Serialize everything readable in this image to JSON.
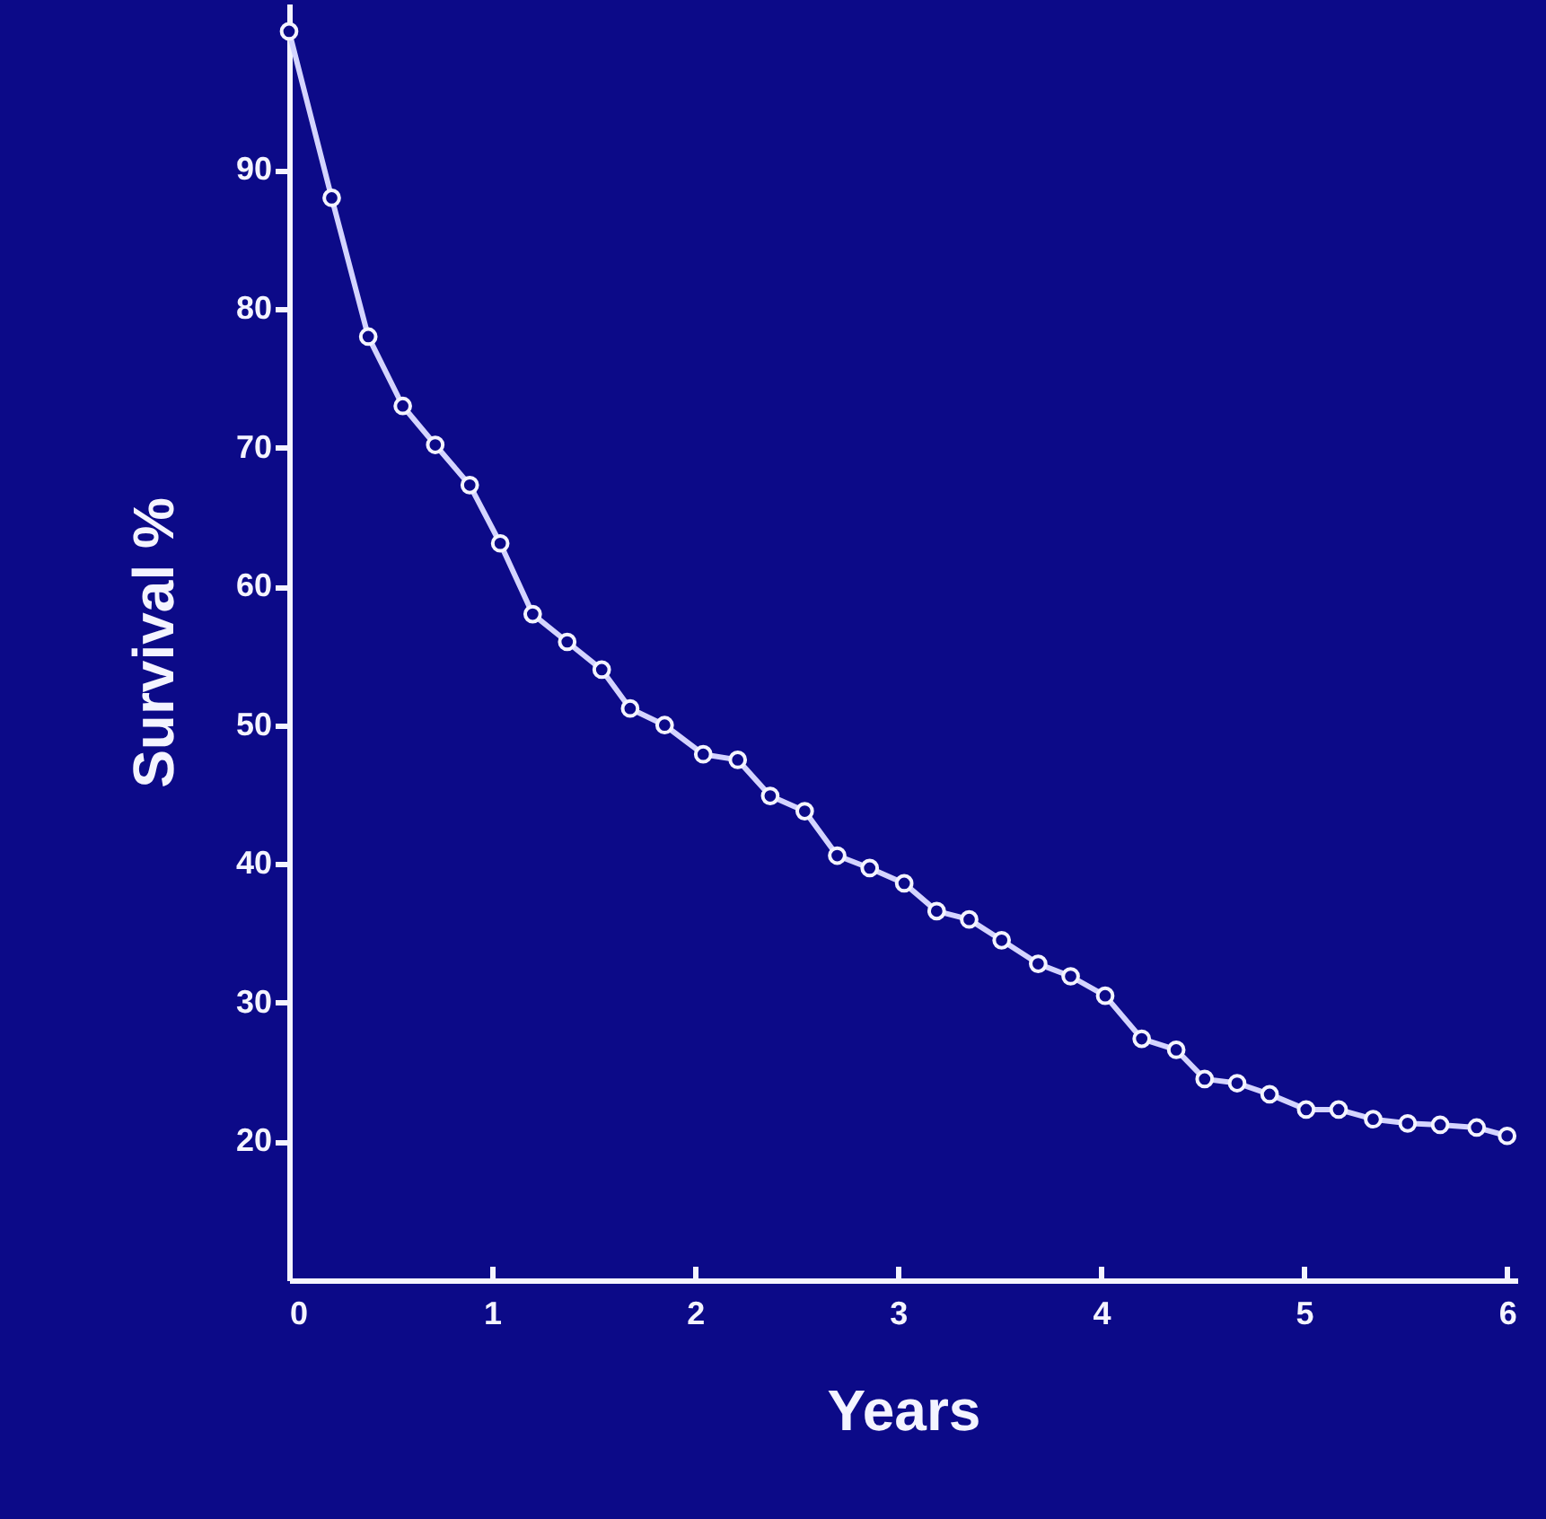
{
  "chart_data": {
    "type": "line",
    "xlabel": "Years",
    "ylabel": "Survival %",
    "x": [
      0,
      0.21,
      0.39,
      0.56,
      0.72,
      0.89,
      1.04,
      1.2,
      1.37,
      1.54,
      1.68,
      1.85,
      2.04,
      2.21,
      2.37,
      2.54,
      2.7,
      2.86,
      3.03,
      3.19,
      3.35,
      3.51,
      3.69,
      3.85,
      4.02,
      4.2,
      4.37,
      4.51,
      4.67,
      4.83,
      5.01,
      5.17,
      5.34,
      5.51,
      5.67,
      5.85,
      6.0
    ],
    "series": [
      {
        "color": "#d4d4ff",
        "values": [
          100,
          88,
          78,
          73,
          70.2,
          67.3,
          63.1,
          58,
          56,
          54,
          51.2,
          50,
          47.9,
          47.5,
          44.9,
          43.8,
          40.6,
          39.7,
          38.6,
          36.6,
          36,
          34.5,
          32.8,
          31.9,
          30.5,
          27.4,
          26.6,
          24.5,
          24.2,
          23.4,
          22.3,
          22.3,
          21.6,
          21.3,
          21.2,
          21,
          20.4
        ]
      }
    ],
    "xlim": [
      0,
      6.05
    ],
    "xticks": [
      0,
      1,
      2,
      3,
      4,
      5,
      6
    ],
    "ylim": [
      10,
      102
    ],
    "yticks": [
      20,
      30,
      40,
      50,
      60,
      70,
      80,
      90
    ],
    "grid": false,
    "marker": "circle",
    "line_style": "solid"
  }
}
